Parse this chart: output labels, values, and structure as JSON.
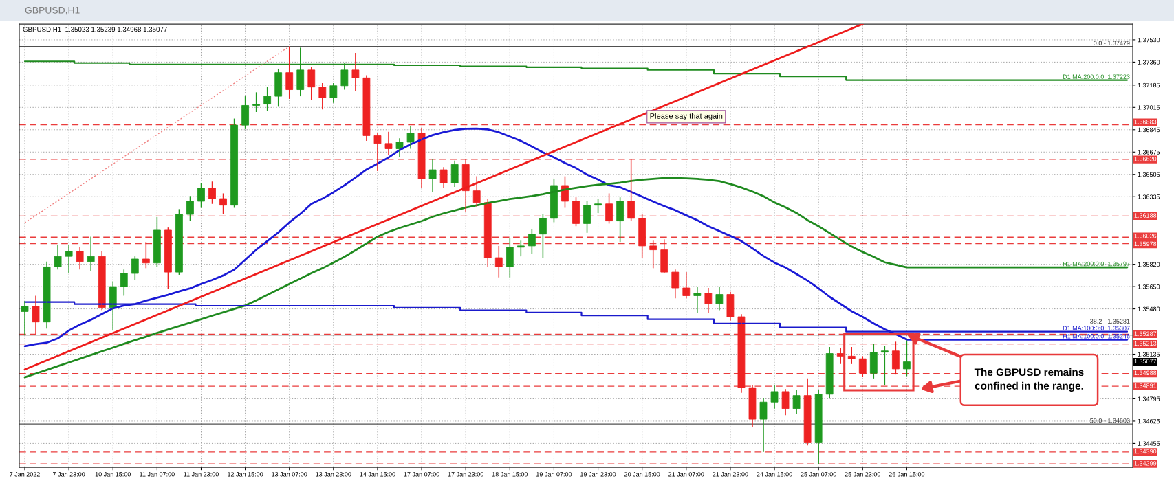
{
  "chart_data": {
    "type": "candlestick",
    "title": "GBPUSD,H1",
    "subtitle": "GBPUSD,H1  1.35023 1.35239 1.34968 1.35077",
    "categories": [
      "7 Jan 2022",
      null,
      null,
      null,
      "7 Jan 23:00",
      null,
      null,
      null,
      "10 Jan 15:00",
      null,
      null,
      null,
      "11 Jan 07:00",
      null,
      null,
      null,
      "11 Jan 23:00",
      null,
      null,
      null,
      "12 Jan 15:00",
      null,
      null,
      null,
      "13 Jan 07:00",
      null,
      null,
      null,
      "13 Jan 23:00",
      null,
      null,
      null,
      "14 Jan 15:00",
      null,
      null,
      null,
      "17 Jan 07:00",
      null,
      null,
      null,
      "17 Jan 23:00",
      null,
      null,
      null,
      "18 Jan 15:00",
      null,
      null,
      null,
      "19 Jan 07:00",
      null,
      null,
      null,
      "19 Jan 23:00",
      null,
      null,
      null,
      "20 Jan 15:00",
      null,
      null,
      null,
      "21 Jan 07:00",
      null,
      null,
      null,
      "21 Jan 23:00",
      null,
      null,
      null,
      "24 Jan 15:00",
      null,
      null,
      null,
      "25 Jan 07:00",
      null,
      null,
      null,
      "25 Jan 23:00",
      null,
      null,
      null,
      "26 Jan 15:00",
      null,
      null,
      null,
      null,
      null,
      null,
      null,
      null,
      null,
      null,
      null,
      null,
      null,
      null,
      null,
      null,
      null,
      null,
      null,
      null
    ],
    "ohlc": [
      [
        1.3546,
        1.3554,
        1.3528,
        1.355
      ],
      [
        1.355,
        1.3558,
        1.3529,
        1.3538
      ],
      [
        1.3538,
        1.3584,
        1.3533,
        1.358
      ],
      [
        1.358,
        1.3597,
        1.3578,
        1.3588
      ],
      [
        1.3588,
        1.3597,
        1.3575,
        1.3592
      ],
      [
        1.3592,
        1.3595,
        1.3578,
        1.3584
      ],
      [
        1.3584,
        1.3603,
        1.3577,
        1.3588
      ],
      [
        1.3588,
        1.3592,
        1.3547,
        1.3549
      ],
      [
        1.3549,
        1.3569,
        1.3532,
        1.3565
      ],
      [
        1.3565,
        1.3578,
        1.3558,
        1.3575
      ],
      [
        1.3575,
        1.3588,
        1.357,
        1.3586
      ],
      [
        1.3586,
        1.3599,
        1.3579,
        1.3583
      ],
      [
        1.3583,
        1.3618,
        1.358,
        1.3608
      ],
      [
        1.3608,
        1.361,
        1.3563,
        1.3576
      ],
      [
        1.3576,
        1.3624,
        1.3574,
        1.362
      ],
      [
        1.362,
        1.3634,
        1.3615,
        1.363
      ],
      [
        1.363,
        1.3644,
        1.3625,
        1.364
      ],
      [
        1.364,
        1.3645,
        1.3628,
        1.3632
      ],
      [
        1.3632,
        1.3636,
        1.362,
        1.3627
      ],
      [
        1.3627,
        1.3693,
        1.3625,
        1.3688
      ],
      [
        1.3688,
        1.371,
        1.3685,
        1.3703
      ],
      [
        1.3703,
        1.3713,
        1.3698,
        1.3704
      ],
      [
        1.3704,
        1.3717,
        1.3699,
        1.371
      ],
      [
        1.371,
        1.3731,
        1.3702,
        1.3728
      ],
      [
        1.3728,
        1.37479,
        1.3708,
        1.3715
      ],
      [
        1.3715,
        1.3747,
        1.371,
        1.373
      ],
      [
        1.373,
        1.3732,
        1.3707,
        1.3717
      ],
      [
        1.3717,
        1.372,
        1.37,
        1.3709
      ],
      [
        1.3709,
        1.372,
        1.3705,
        1.3718
      ],
      [
        1.3718,
        1.3735,
        1.3715,
        1.373
      ],
      [
        1.373,
        1.3743,
        1.3714,
        1.3724
      ],
      [
        1.3724,
        1.3726,
        1.3676,
        1.368
      ],
      [
        1.368,
        1.3682,
        1.3653,
        1.3674
      ],
      [
        1.3674,
        1.3683,
        1.3665,
        1.367
      ],
      [
        1.367,
        1.3678,
        1.3664,
        1.3675
      ],
      [
        1.3675,
        1.3687,
        1.367,
        1.3682
      ],
      [
        1.3682,
        1.3686,
        1.364,
        1.3647
      ],
      [
        1.3647,
        1.3662,
        1.3637,
        1.3654
      ],
      [
        1.3654,
        1.3656,
        1.364,
        1.3644
      ],
      [
        1.3644,
        1.3661,
        1.3641,
        1.3658
      ],
      [
        1.3658,
        1.3662,
        1.3622,
        1.3638
      ],
      [
        1.3638,
        1.3649,
        1.3626,
        1.3629
      ],
      [
        1.3629,
        1.3632,
        1.358,
        1.3587
      ],
      [
        1.3587,
        1.3596,
        1.3572,
        1.358
      ],
      [
        1.358,
        1.3602,
        1.3572,
        1.3595
      ],
      [
        1.3595,
        1.36,
        1.3588,
        1.3596
      ],
      [
        1.3596,
        1.3609,
        1.359,
        1.3605
      ],
      [
        1.3605,
        1.362,
        1.3587,
        1.3617
      ],
      [
        1.3617,
        1.3647,
        1.3614,
        1.3642
      ],
      [
        1.3642,
        1.3649,
        1.3625,
        1.363
      ],
      [
        1.363,
        1.3633,
        1.3611,
        1.3613
      ],
      [
        1.3613,
        1.363,
        1.3606,
        1.3627
      ],
      [
        1.3627,
        1.3632,
        1.3621,
        1.3628
      ],
      [
        1.3628,
        1.3636,
        1.3613,
        1.3615
      ],
      [
        1.3615,
        1.3633,
        1.3599,
        1.363
      ],
      [
        1.363,
        1.3662,
        1.3615,
        1.3617
      ],
      [
        1.3617,
        1.362,
        1.3587,
        1.3596
      ],
      [
        1.3596,
        1.36,
        1.3579,
        1.3593
      ],
      [
        1.3593,
        1.3601,
        1.3575,
        1.3576
      ],
      [
        1.3576,
        1.3578,
        1.3556,
        1.3564
      ],
      [
        1.3564,
        1.3576,
        1.3556,
        1.3558
      ],
      [
        1.3558,
        1.3565,
        1.3545,
        1.356
      ],
      [
        1.356,
        1.3564,
        1.3545,
        1.3552
      ],
      [
        1.3552,
        1.3565,
        1.3547,
        1.3559
      ],
      [
        1.3559,
        1.3561,
        1.3539,
        1.3542
      ],
      [
        1.3542,
        1.3544,
        1.3484,
        1.3488
      ],
      [
        1.3488,
        1.349,
        1.3458,
        1.3464
      ],
      [
        1.3464,
        1.348,
        1.3439,
        1.3477
      ],
      [
        1.3477,
        1.349,
        1.3472,
        1.3485
      ],
      [
        1.3485,
        1.3487,
        1.3467,
        1.3472
      ],
      [
        1.3472,
        1.3486,
        1.3468,
        1.3482
      ],
      [
        1.3482,
        1.3495,
        1.3444,
        1.3446
      ],
      [
        1.3446,
        1.3486,
        1.34299,
        1.3483
      ],
      [
        1.3483,
        1.3519,
        1.348,
        1.3514
      ],
      [
        1.3514,
        1.3518,
        1.3506,
        1.3512
      ],
      [
        1.3512,
        1.3519,
        1.3506,
        1.351
      ],
      [
        1.351,
        1.3512,
        1.3496,
        1.3499
      ],
      [
        1.3499,
        1.35213,
        1.3495,
        1.3515
      ],
      [
        1.3515,
        1.352,
        1.349,
        1.3516
      ],
      [
        1.3516,
        1.3523,
        1.3498,
        1.35023
      ],
      [
        1.35023,
        1.35239,
        1.34968,
        1.35077
      ],
      null,
      null,
      null,
      null,
      null,
      null,
      null,
      null,
      null,
      null,
      null,
      null,
      null,
      null,
      null,
      null,
      null,
      null,
      null,
      null
    ],
    "colors": [
      "#1f9a1f",
      "#ee2222",
      "#1f9a1f",
      "#1f9a1f",
      "#1f9a1f",
      "#ee2222",
      "#1f9a1f",
      "#ee2222",
      "#1f9a1f",
      "#1f9a1f",
      "#1f9a1f",
      "#ee2222",
      "#1f9a1f",
      "#ee2222",
      "#1f9a1f",
      "#1f9a1f",
      "#1f9a1f",
      "#ee2222",
      "#ee2222",
      "#1f9a1f",
      "#1f9a1f",
      "#1f9a1f",
      "#1f9a1f",
      "#1f9a1f",
      "#ee2222",
      "#1f9a1f",
      "#ee2222",
      "#ee2222",
      "#1f9a1f",
      "#1f9a1f",
      "#ee2222",
      "#ee2222",
      "#ee2222",
      "#ee2222",
      "#1f9a1f",
      "#1f9a1f",
      "#ee2222",
      "#1f9a1f",
      "#ee2222",
      "#1f9a1f",
      "#ee2222",
      "#ee2222",
      "#ee2222",
      "#ee2222",
      "#1f9a1f",
      "#1f9a1f",
      "#1f9a1f",
      "#1f9a1f",
      "#1f9a1f",
      "#ee2222",
      "#ee2222",
      "#1f9a1f",
      "#1f9a1f",
      "#ee2222",
      "#1f9a1f",
      "#ee2222",
      "#ee2222",
      "#ee2222",
      "#ee2222",
      "#ee2222",
      "#ee2222",
      "#1f9a1f",
      "#ee2222",
      "#1f9a1f",
      "#ee2222",
      "#ee2222",
      "#ee2222",
      "#1f9a1f",
      "#1f9a1f",
      "#ee2222",
      "#1f9a1f",
      "#ee2222",
      "#1f9a1f",
      "#1f9a1f",
      "#ee2222",
      "#ee2222",
      "#ee2222",
      "#1f9a1f",
      "#1f9a1f",
      "#ee2222",
      "#1f9a1f",
      null,
      null,
      null,
      null,
      null,
      null,
      null,
      null,
      null,
      null,
      null,
      null,
      null,
      null,
      null,
      null,
      null,
      null,
      null,
      null
    ],
    "series": [
      {
        "type": "line",
        "name": "H1 MA:100:0:0: 1.35246",
        "color": "#1a1ad6",
        "values": [
          1.35196,
          1.35212,
          1.35223,
          1.35255,
          1.35316,
          1.3536,
          1.35397,
          1.35441,
          1.35484,
          1.35506,
          1.35517,
          1.35543,
          1.35565,
          1.35587,
          1.35613,
          1.35637,
          1.3567,
          1.357,
          1.35735,
          1.35779,
          1.35855,
          1.35931,
          1.35997,
          1.36062,
          1.36139,
          1.36204,
          1.3628,
          1.3632,
          1.36368,
          1.36422,
          1.36481,
          1.36542,
          1.36586,
          1.36634,
          1.3669,
          1.36734,
          1.36771,
          1.36804,
          1.36826,
          1.36843,
          1.36852,
          1.36854,
          1.36847,
          1.36826,
          1.36793,
          1.3676,
          1.36717,
          1.36673,
          1.36634,
          1.36592,
          1.36553,
          1.36503,
          1.36466,
          1.36422,
          1.36407,
          1.36372,
          1.36335,
          1.36298,
          1.36263,
          1.36232,
          1.36193,
          1.36156,
          1.3611,
          1.36073,
          1.36036,
          1.35997,
          1.35942,
          1.35883,
          1.35833,
          1.35796,
          1.35746,
          1.35696,
          1.35637,
          1.35572,
          1.35517,
          1.35462,
          1.35419,
          1.35369,
          1.35325,
          1.35288,
          1.35246,
          1.35246,
          1.35246,
          1.35246,
          1.35246,
          1.35246,
          1.35246,
          1.35246,
          1.35246,
          1.35246,
          1.35246,
          1.35246,
          1.35246,
          1.35246,
          1.35246,
          1.35246,
          1.35246,
          1.35246,
          1.35246,
          1.35246,
          1.35246
        ]
      },
      {
        "type": "line",
        "name": "H1 MA:200:0:0: 1.35797",
        "color": "#1f8a1f",
        "values": [
          1.34959,
          1.34987,
          1.35015,
          1.35044,
          1.35072,
          1.351,
          1.35129,
          1.35157,
          1.35185,
          1.35214,
          1.35242,
          1.35268,
          1.35297,
          1.35323,
          1.35349,
          1.35375,
          1.35401,
          1.35428,
          1.35454,
          1.3548,
          1.35506,
          1.35545,
          1.35587,
          1.35628,
          1.3567,
          1.35711,
          1.35753,
          1.3579,
          1.35833,
          1.35877,
          1.35927,
          1.35979,
          1.3603,
          1.36067,
          1.36097,
          1.36123,
          1.36149,
          1.36182,
          1.36208,
          1.3623,
          1.36252,
          1.36269,
          1.36287,
          1.36302,
          1.36317,
          1.36328,
          1.36339,
          1.36354,
          1.36372,
          1.36389,
          1.36402,
          1.36416,
          1.36426,
          1.36433,
          1.36442,
          1.36455,
          1.36464,
          1.3647,
          1.36477,
          1.36477,
          1.36474,
          1.3647,
          1.36464,
          1.36453,
          1.36431,
          1.36405,
          1.36374,
          1.36339,
          1.36291,
          1.36254,
          1.36211,
          1.36156,
          1.3611,
          1.36058,
          1.36006,
          1.35955,
          1.35914,
          1.35877,
          1.35835,
          1.35816,
          1.35797,
          1.35797,
          1.35797,
          1.35797,
          1.35797,
          1.35797,
          1.35797,
          1.35797,
          1.35797,
          1.35797,
          1.35797,
          1.35797,
          1.35797,
          1.35797,
          1.35797,
          1.35797,
          1.35797,
          1.35797,
          1.35797,
          1.35797,
          1.35797
        ]
      },
      {
        "type": "step",
        "name": "D1 MA:100:0:0: 1.35307",
        "color": "#1a1acc",
        "values": [
          1.35532,
          1.35532,
          1.35532,
          1.35532,
          1.35532,
          1.35517,
          1.35517,
          1.35517,
          1.35517,
          1.35517,
          1.35517,
          1.35517,
          1.35517,
          1.35517,
          1.35517,
          1.35517,
          1.35504,
          1.35504,
          1.35504,
          1.35504,
          1.35504,
          1.35504,
          1.35504,
          1.35504,
          1.35504,
          1.35504,
          1.35504,
          1.35504,
          1.35504,
          1.35504,
          1.35504,
          1.35504,
          1.35504,
          1.35504,
          1.35489,
          1.35489,
          1.35489,
          1.35489,
          1.35489,
          1.35489,
          1.35469,
          1.35469,
          1.35469,
          1.35469,
          1.35469,
          1.35469,
          1.35452,
          1.35452,
          1.35452,
          1.35452,
          1.35452,
          1.3543,
          1.3543,
          1.3543,
          1.3543,
          1.3543,
          1.3543,
          1.35401,
          1.35401,
          1.35401,
          1.35401,
          1.35401,
          1.35401,
          1.35369,
          1.35369,
          1.35369,
          1.35369,
          1.35369,
          1.35369,
          1.35338,
          1.35338,
          1.35338,
          1.35338,
          1.35338,
          1.35338,
          1.35307,
          1.35307,
          1.35307,
          1.35307,
          1.35307,
          1.35307,
          1.35307,
          1.35307,
          1.35307,
          1.35307,
          1.35307,
          1.35307,
          1.35307,
          1.35307,
          1.35307,
          1.35307,
          1.35307,
          1.35307,
          1.35307,
          1.35307,
          1.35307,
          1.35307,
          1.35307,
          1.35307,
          1.35307,
          1.35307
        ]
      },
      {
        "type": "step",
        "name": "D1 MA:200:0:0: 1.37223",
        "color": "#1f8a1f",
        "values": [
          1.37366,
          1.37366,
          1.37366,
          1.37366,
          1.37366,
          1.37353,
          1.37353,
          1.37353,
          1.37353,
          1.37353,
          1.37342,
          1.37342,
          1.37342,
          1.37342,
          1.37342,
          1.37342,
          1.37342,
          1.37342,
          1.37342,
          1.37342,
          1.37342,
          1.37342,
          1.37342,
          1.37342,
          1.37342,
          1.37342,
          1.37342,
          1.37342,
          1.37342,
          1.37342,
          1.37342,
          1.37342,
          1.37342,
          1.37342,
          1.37336,
          1.37336,
          1.37336,
          1.37336,
          1.37336,
          1.37336,
          1.37327,
          1.37327,
          1.37327,
          1.37327,
          1.37327,
          1.37327,
          1.37321,
          1.37321,
          1.37321,
          1.37321,
          1.37321,
          1.37312,
          1.37312,
          1.37312,
          1.37312,
          1.37312,
          1.37312,
          1.37301,
          1.37301,
          1.37301,
          1.37301,
          1.37301,
          1.37301,
          1.37273,
          1.37273,
          1.37273,
          1.37273,
          1.37273,
          1.37273,
          1.37251,
          1.37251,
          1.37251,
          1.37251,
          1.37251,
          1.37251,
          1.37223,
          1.37223,
          1.37223,
          1.37223,
          1.37223,
          1.37223,
          1.37223,
          1.37223,
          1.37223,
          1.37223,
          1.37223,
          1.37223,
          1.37223,
          1.37223,
          1.37223,
          1.37223,
          1.37223,
          1.37223,
          1.37223,
          1.37223,
          1.37223,
          1.37223,
          1.37223,
          1.37223,
          1.37223,
          1.37223
        ]
      },
      {
        "type": "line",
        "color": "#ee1c1c",
        "values": [
          1.35019,
          null,
          null,
          null,
          null,
          null,
          null,
          null,
          null,
          null,
          null,
          null,
          null,
          null,
          null,
          null,
          null,
          null,
          null,
          null,
          null,
          null,
          null,
          null,
          null,
          null,
          null,
          null,
          null,
          null,
          null,
          null,
          null,
          null,
          null,
          null,
          null,
          null,
          null,
          null,
          null,
          null,
          null,
          null,
          null,
          null,
          null,
          null,
          null,
          null,
          null,
          null,
          null,
          null,
          null,
          null,
          null,
          null,
          null,
          null,
          null,
          null,
          null,
          null,
          null,
          null,
          null,
          null,
          null,
          null,
          null,
          null,
          null,
          null,
          null,
          null,
          1.3765,
          null,
          null,
          null,
          null,
          null,
          null,
          null,
          null,
          null,
          null,
          null,
          null,
          null,
          null,
          null,
          null,
          null,
          null,
          null,
          null,
          null,
          null,
          null,
          null
        ]
      },
      {
        "type": "line",
        "color": "#f08080",
        "line_style": "dotted",
        "values": [
          1.36136,
          null,
          null,
          null,
          null,
          null,
          null,
          null,
          null,
          null,
          null,
          null,
          null,
          null,
          null,
          null,
          null,
          null,
          null,
          null,
          null,
          null,
          null,
          null,
          1.37479,
          null,
          null,
          null,
          null,
          null,
          null,
          null,
          null,
          null,
          null,
          null,
          null,
          null,
          null,
          null,
          null,
          null,
          null,
          null,
          null,
          null,
          null,
          null,
          null,
          null,
          null,
          null,
          null,
          null,
          null,
          null,
          null,
          null,
          null,
          null,
          null,
          null,
          null,
          null,
          null,
          null,
          null,
          null,
          null,
          null,
          null,
          null,
          null,
          null,
          null,
          null,
          null,
          null,
          null,
          null,
          null,
          null,
          null,
          null,
          null,
          null,
          null,
          null,
          null,
          null,
          null,
          null,
          null,
          null,
          null,
          null,
          null,
          null,
          null,
          null,
          null
        ]
      }
    ],
    "ylim": [
      1.34274,
      1.3765
    ],
    "yticks": [
      {
        "value": 1.3753,
        "label": "1.37530"
      },
      {
        "value": 1.3736,
        "label": "1.37360"
      },
      {
        "value": 1.37185,
        "label": "1.37185"
      },
      {
        "value": 1.37015,
        "label": "1.37015"
      },
      {
        "value": 1.36845,
        "label": "1.36845"
      },
      {
        "value": 1.36675,
        "label": "1.36675"
      },
      {
        "value": 1.36505,
        "label": "1.36505"
      },
      {
        "value": 1.36335,
        "label": "1.36335"
      },
      {
        "value": 1.3582,
        "label": "1.35820"
      },
      {
        "value": 1.3565,
        "label": "1.35650"
      },
      {
        "value": 1.3548,
        "label": "1.35480"
      },
      {
        "value": 1.35135,
        "label": "1.35135"
      },
      {
        "value": 1.34795,
        "label": "1.34795"
      },
      {
        "value": 1.34625,
        "label": "1.34625"
      },
      {
        "value": 1.34455,
        "label": "1.34455"
      }
    ],
    "grid": true,
    "ref_lines": [
      {
        "axis": "y",
        "value": 1.37479,
        "color": "#505050",
        "line_style": "solid"
      },
      {
        "axis": "y",
        "value": 1.36883,
        "label": "1.36883",
        "color": "#ea3c3c",
        "line_style": "dashed"
      },
      {
        "axis": "y",
        "value": 1.3662,
        "label": "1.36620",
        "color": "#ea3c3c",
        "line_style": "dashed"
      },
      {
        "axis": "y",
        "value": 1.36188,
        "label": "1.36188",
        "color": "#ea3c3c",
        "line_style": "dashed"
      },
      {
        "axis": "y",
        "value": 1.36026,
        "label": "1.36026",
        "color": "#ea3c3c",
        "line_style": "dashed"
      },
      {
        "axis": "y",
        "value": 1.35978,
        "label": "1.35978",
        "color": "#ea3c3c",
        "line_style": "dashed"
      },
      {
        "axis": "y",
        "value": 1.35287,
        "label": "1.35287",
        "color": "#ea3c3c",
        "line_style": "dashed"
      },
      {
        "axis": "y",
        "value": 1.35281,
        "color": "#505050",
        "line_style": "solid"
      },
      {
        "axis": "y",
        "value": 1.35213,
        "label": "1.35213",
        "color": "#ea3c3c",
        "line_style": "dashed"
      },
      {
        "axis": "y",
        "value": 1.34988,
        "label": "1.34988",
        "color": "#ea3c3c",
        "line_style": "dashed"
      },
      {
        "axis": "y",
        "value": 1.34891,
        "label": "1.34891",
        "color": "#ea3c3c",
        "line_style": "dashed"
      },
      {
        "axis": "y",
        "value": 1.34603,
        "color": "#505050",
        "line_style": "solid"
      },
      {
        "axis": "y",
        "value": 1.3439,
        "label": "1.34390",
        "color": "#ea3c3c",
        "line_style": "dashed"
      },
      {
        "axis": "y",
        "value": 1.34299,
        "label": "1.34299",
        "color": "#ea3c3c",
        "line_style": "dashed"
      }
    ],
    "annotations": [
      "Please say that again",
      {
        "text": "The GBPUSD remains\nconfined in the range.",
        "x": "26 Jan 15:00",
        "y": 1.35287
      },
      {
        "text": "1.35077",
        "y": 1.35077
      },
      {
        "text": "0.0 - 1.37479",
        "y": 1.37479
      },
      {
        "text": "38.2 - 1.35281",
        "y": 1.35281
      },
      {
        "text": "50.0 - 1.34603",
        "y": 1.34603
      }
    ]
  }
}
